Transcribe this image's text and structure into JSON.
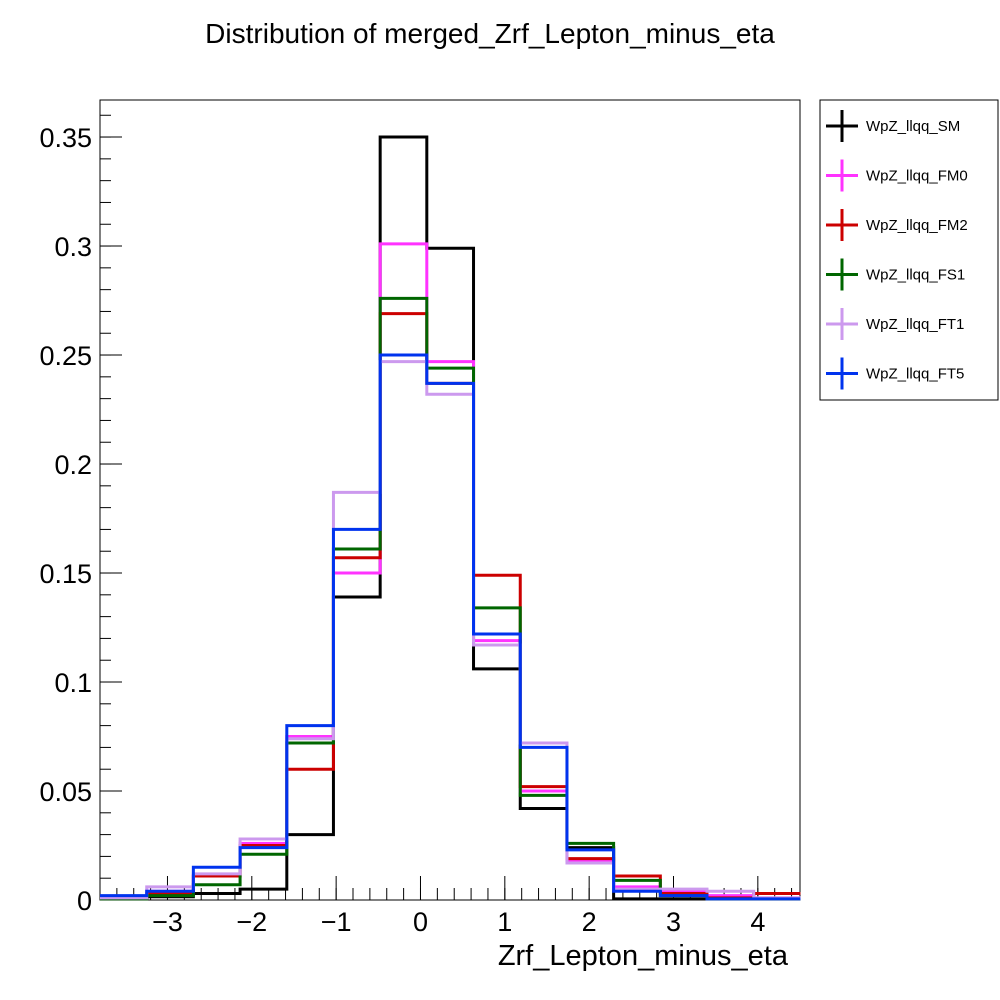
{
  "chart_data": {
    "type": "histogram",
    "title": "Distribution of merged_Zrf_Lepton_minus_eta",
    "xlabel": "Zrf_Lepton_minus_eta",
    "ylabel": "",
    "xlim": [
      -3.8,
      4.5
    ],
    "ylim": [
      0,
      0.367
    ],
    "x_ticks": [
      -3,
      -2,
      -1,
      0,
      1,
      2,
      3,
      4
    ],
    "x_tick_labels": [
      "−3",
      "−2",
      "−1",
      "0",
      "1",
      "2",
      "3",
      "4"
    ],
    "y_ticks": [
      0,
      0.05,
      0.1,
      0.15,
      0.2,
      0.25,
      0.3,
      0.35
    ],
    "y_tick_labels": [
      "0",
      "0.05",
      "0.1",
      "0.15",
      "0.2",
      "0.25",
      "0.3",
      "0.35"
    ],
    "bin_edges": [
      -3.8,
      -3.246,
      -2.693,
      -2.139,
      -1.585,
      -1.032,
      -0.478,
      0.075,
      0.629,
      1.183,
      1.737,
      2.29,
      2.844,
      3.397,
      3.951,
      4.505
    ],
    "legend_position": "top-right-outside",
    "series": [
      {
        "name": "WpZ_llqq_SM",
        "color": "#000000",
        "values": [
          0.0005,
          0.0015,
          0.003,
          0.005,
          0.03,
          0.139,
          0.35,
          0.299,
          0.106,
          0.042,
          0.024,
          0.0005,
          0.0005,
          0.0005,
          0.0005
        ]
      },
      {
        "name": "WpZ_llqq_FM0",
        "color": "#ff33ff",
        "values": [
          0.0015,
          0.004,
          0.011,
          0.026,
          0.075,
          0.15,
          0.301,
          0.247,
          0.119,
          0.05,
          0.018,
          0.006,
          0.004,
          0.002,
          0.001
        ]
      },
      {
        "name": "WpZ_llqq_FM2",
        "color": "#cc0000",
        "values": [
          0.0015,
          0.003,
          0.011,
          0.025,
          0.06,
          0.157,
          0.269,
          0.237,
          0.149,
          0.052,
          0.019,
          0.011,
          0.003,
          0.001,
          0.003
        ]
      },
      {
        "name": "WpZ_llqq_FS1",
        "color": "#006600",
        "values": [
          0.0005,
          0.002,
          0.007,
          0.021,
          0.072,
          0.161,
          0.276,
          0.244,
          0.134,
          0.048,
          0.026,
          0.009,
          0.002,
          0.0005,
          0.0005
        ]
      },
      {
        "name": "WpZ_llqq_FT1",
        "color": "#cc99ee",
        "values": [
          0.001,
          0.006,
          0.012,
          0.028,
          0.074,
          0.187,
          0.247,
          0.232,
          0.117,
          0.072,
          0.017,
          0.005,
          0.005,
          0.004,
          0.001
        ]
      },
      {
        "name": "WpZ_llqq_FT5",
        "color": "#0033ee",
        "values": [
          0.002,
          0.004,
          0.015,
          0.024,
          0.08,
          0.17,
          0.25,
          0.237,
          0.122,
          0.07,
          0.023,
          0.004,
          0.002,
          0.0005,
          0.0005
        ]
      }
    ]
  }
}
